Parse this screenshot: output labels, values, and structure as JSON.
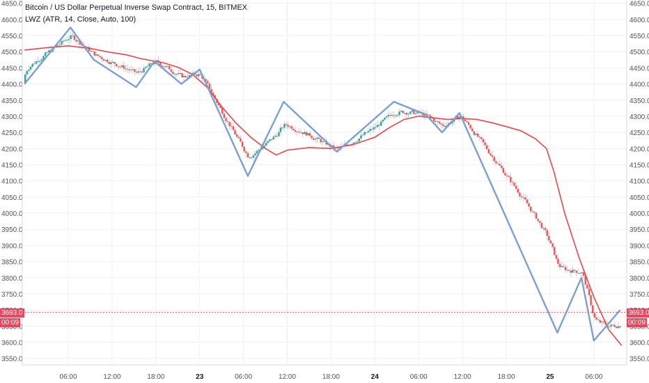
{
  "legend": {
    "title": "Bitcoin / US Dollar Perpetual Inverse Swap Contract, 15, BITMEX",
    "indicator": "LWZ (ATR, 14, Close, Auto, 100)"
  },
  "price_badge": {
    "price": "3693.0",
    "countdown": "00:09",
    "color": "#e8475e"
  },
  "colors": {
    "up": "#26a69a",
    "down": "#ef5350",
    "zigzag": "#7b9fd4",
    "ma": "#e84545",
    "grid": "#eef0f3"
  },
  "chart_data": {
    "type": "candlestick",
    "title": "Bitcoin / US Dollar Perpetual Inverse Swap Contract, 15, BITMEX",
    "y_ticks": [
      3550,
      3600,
      3650,
      3700,
      3750,
      3800,
      3850,
      3900,
      3950,
      4000,
      4050,
      4100,
      4150,
      4200,
      4250,
      4300,
      4350,
      4400,
      4450,
      4500,
      4550,
      4600,
      4650
    ],
    "y_tick_labels": [
      "3550.0",
      "3600.0",
      "3650.0",
      "3700.0",
      "3750.0",
      "3800.0",
      "3850.0",
      "3900.0",
      "3950.0",
      "4000.0",
      "4050.0",
      "4100.0",
      "4150.0",
      "4200.0",
      "4250.0",
      "4300.0",
      "4350.0",
      "4400.0",
      "4450.0",
      "4500.0",
      "4550.0",
      "4600.0",
      "4650.0"
    ],
    "ylim": [
      3530,
      4660
    ],
    "x_ticks": [
      {
        "label": "06:00",
        "t": 6,
        "bold": false
      },
      {
        "label": "12:00",
        "t": 12,
        "bold": false
      },
      {
        "label": "18:00",
        "t": 18,
        "bold": false
      },
      {
        "label": "23",
        "t": 24,
        "bold": true
      },
      {
        "label": "06:00",
        "t": 30,
        "bold": false
      },
      {
        "label": "12:00",
        "t": 36,
        "bold": false
      },
      {
        "label": "18:00",
        "t": 42,
        "bold": false
      },
      {
        "label": "24",
        "t": 48,
        "bold": true
      },
      {
        "label": "06:00",
        "t": 54,
        "bold": false
      },
      {
        "label": "12:00",
        "t": 60,
        "bold": false
      },
      {
        "label": "18:00",
        "t": 66,
        "bold": false
      },
      {
        "label": "25",
        "t": 72,
        "bold": true
      },
      {
        "label": "06:00",
        "t": 78,
        "bold": false
      }
    ],
    "xlim": [
      -0.3,
      82.5
    ],
    "zigzag": [
      {
        "t": 0.0,
        "v": 4400
      },
      {
        "t": 6.3,
        "v": 4575
      },
      {
        "t": 9.5,
        "v": 4475
      },
      {
        "t": 15.3,
        "v": 4390
      },
      {
        "t": 17.8,
        "v": 4470
      },
      {
        "t": 21.5,
        "v": 4400
      },
      {
        "t": 24.0,
        "v": 4445
      },
      {
        "t": 30.6,
        "v": 4115
      },
      {
        "t": 35.5,
        "v": 4345
      },
      {
        "t": 42.8,
        "v": 4190
      },
      {
        "t": 50.6,
        "v": 4345
      },
      {
        "t": 55.0,
        "v": 4305
      },
      {
        "t": 57.2,
        "v": 4250
      },
      {
        "t": 59.6,
        "v": 4310
      },
      {
        "t": 73.0,
        "v": 3630
      },
      {
        "t": 76.3,
        "v": 3800
      },
      {
        "t": 78.0,
        "v": 3605
      },
      {
        "t": 81.6,
        "v": 3700
      }
    ],
    "moving_average": [
      {
        "t": 0,
        "v": 4505
      },
      {
        "t": 3,
        "v": 4512
      },
      {
        "t": 6,
        "v": 4518
      },
      {
        "t": 9,
        "v": 4510
      },
      {
        "t": 12,
        "v": 4497
      },
      {
        "t": 14,
        "v": 4490
      },
      {
        "t": 16,
        "v": 4478
      },
      {
        "t": 19,
        "v": 4466
      },
      {
        "t": 21,
        "v": 4452
      },
      {
        "t": 23,
        "v": 4430
      },
      {
        "t": 25,
        "v": 4390
      },
      {
        "t": 27,
        "v": 4330
      },
      {
        "t": 29,
        "v": 4278
      },
      {
        "t": 31,
        "v": 4235
      },
      {
        "t": 33,
        "v": 4200
      },
      {
        "t": 34.5,
        "v": 4180
      },
      {
        "t": 36,
        "v": 4195
      },
      {
        "t": 39,
        "v": 4203
      },
      {
        "t": 42,
        "v": 4200
      },
      {
        "t": 45,
        "v": 4212
      },
      {
        "t": 48,
        "v": 4235
      },
      {
        "t": 50,
        "v": 4265
      },
      {
        "t": 52,
        "v": 4290
      },
      {
        "t": 54,
        "v": 4300
      },
      {
        "t": 56,
        "v": 4295
      },
      {
        "t": 58,
        "v": 4290
      },
      {
        "t": 60,
        "v": 4293
      },
      {
        "t": 62,
        "v": 4290
      },
      {
        "t": 64,
        "v": 4280
      },
      {
        "t": 66,
        "v": 4268
      },
      {
        "t": 68,
        "v": 4255
      },
      {
        "t": 70,
        "v": 4230
      },
      {
        "t": 71.5,
        "v": 4200
      },
      {
        "t": 72.5,
        "v": 4130
      },
      {
        "t": 74,
        "v": 4000
      },
      {
        "t": 76,
        "v": 3860
      },
      {
        "t": 78,
        "v": 3740
      },
      {
        "t": 80,
        "v": 3640
      },
      {
        "t": 81.8,
        "v": 3590
      }
    ],
    "last_price": 3693.0
  }
}
